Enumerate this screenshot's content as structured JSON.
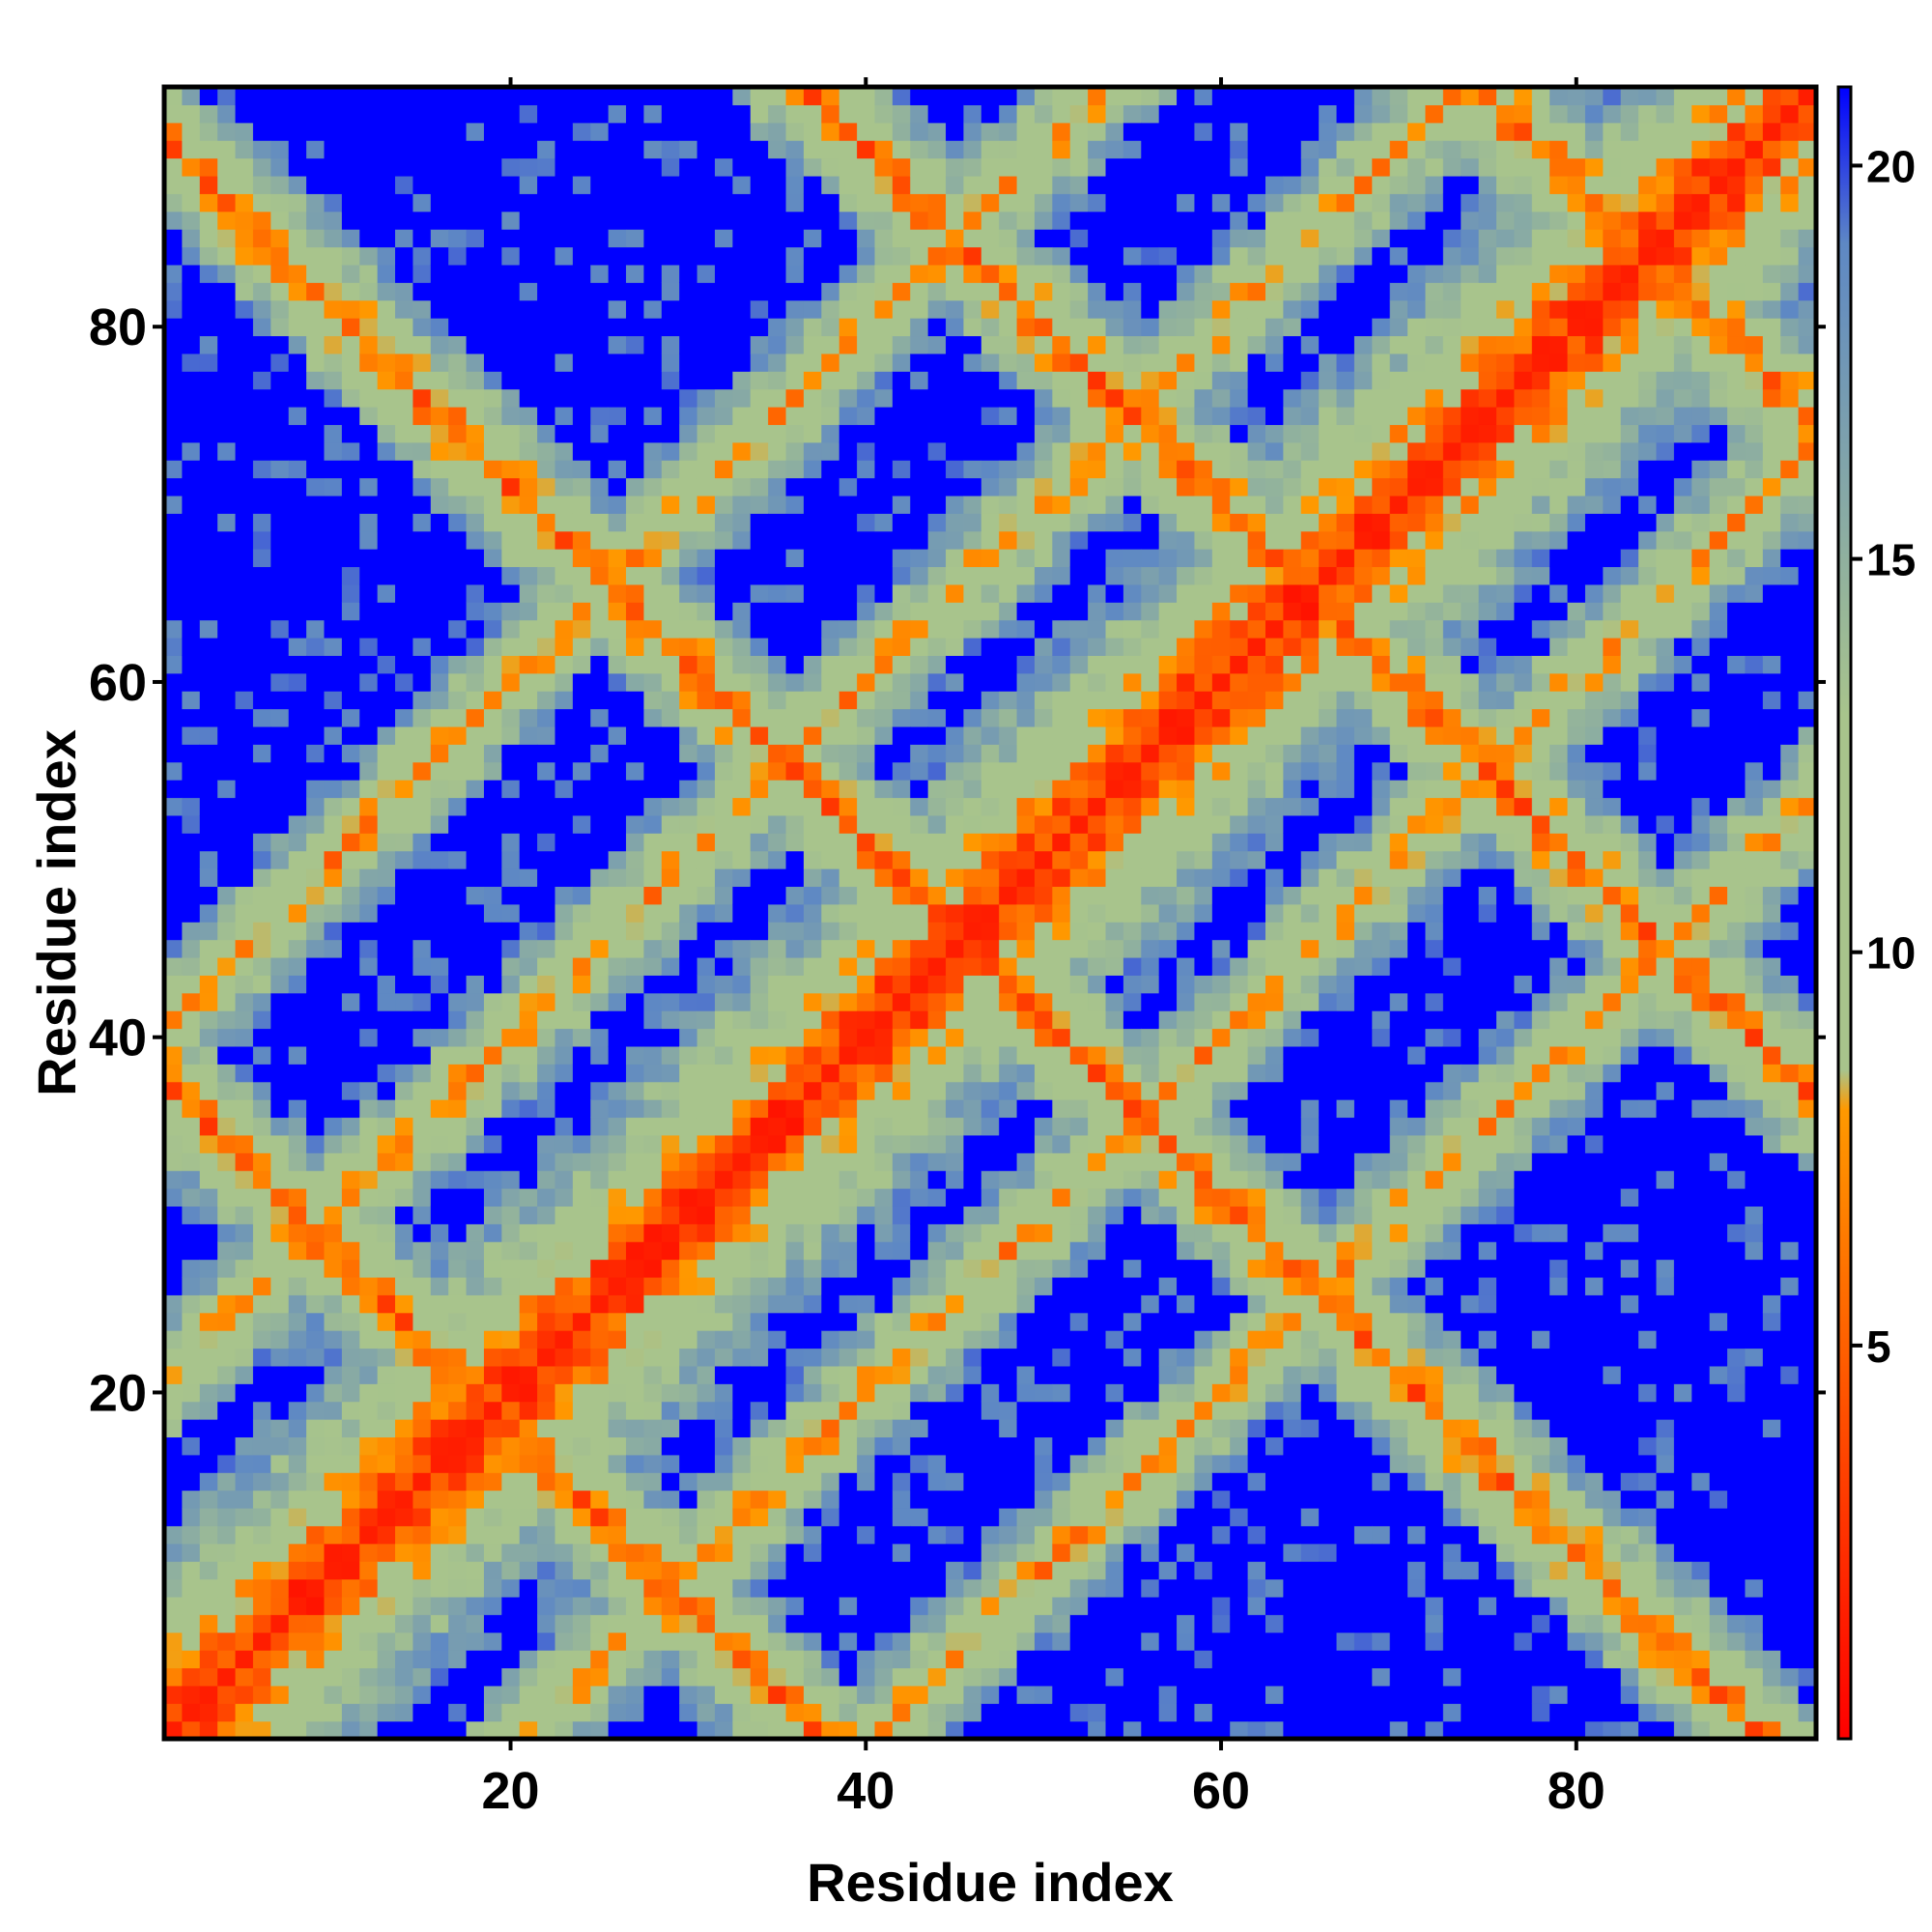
{
  "chart_data": {
    "type": "heatmap",
    "title": "",
    "xlabel": "Residue index",
    "ylabel": "Residue index",
    "n_residues": 93,
    "xlim": [
      0.5,
      93.5
    ],
    "ylim": [
      0.5,
      93.5
    ],
    "x_ticks": [
      20,
      40,
      60,
      80
    ],
    "y_ticks": [
      20,
      40,
      60,
      80
    ],
    "x_tick_labels": [
      "20",
      "40",
      "60",
      "80"
    ],
    "y_tick_labels": [
      "20",
      "40",
      "60",
      "80"
    ],
    "colorbar": {
      "ticks": [
        5,
        10,
        15,
        20
      ],
      "tick_labels": [
        "5",
        "10",
        "15",
        "20"
      ],
      "range": [
        0,
        21
      ],
      "placement": "right",
      "color_stops": [
        {
          "value": 0,
          "color": "#ff0000"
        },
        {
          "value": 8,
          "color": "#ff9900"
        },
        {
          "value": 8.5,
          "color": "#a8c48c"
        },
        {
          "value": 13,
          "color": "#a8c48c"
        },
        {
          "value": 19,
          "color": "#5e88c4"
        },
        {
          "value": 21,
          "color": "#0000ff"
        }
      ]
    },
    "structure": {
      "description_values": "Pairwise residue distance map (data units: distance). Main diagonal and 4 anti-diagonal bands of close contacts.",
      "diagonal_value": 1.5,
      "main_band_width": 2.2,
      "anti_diagonal_sums": [
        38,
        91,
        130,
        168
      ],
      "parallel_offsets": [
        -40,
        -20,
        20,
        40
      ],
      "cutoff": 21
    },
    "colors": {
      "near": "#ff0000",
      "contact": "#ff9900",
      "mid": "#a8c48c",
      "far_mid": "#5e88c4",
      "far": "#0000ff"
    }
  }
}
